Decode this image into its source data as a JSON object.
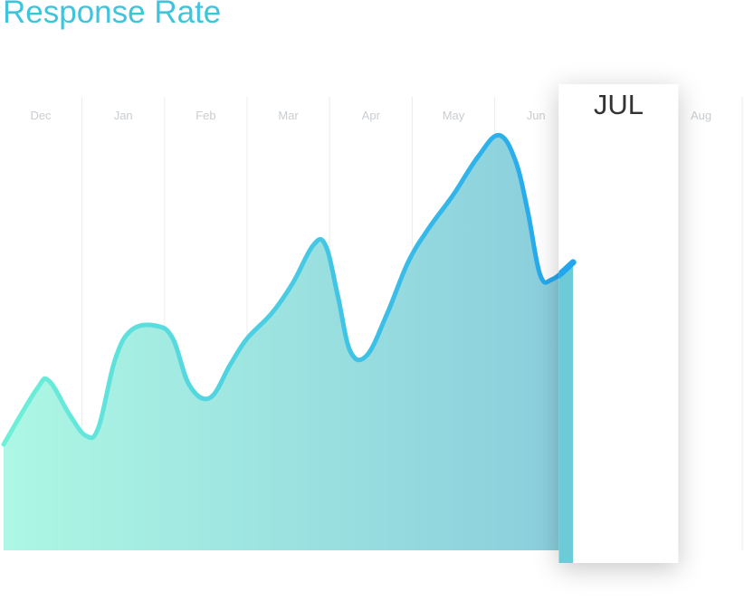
{
  "title": "Response Rate",
  "chart_data": {
    "type": "area",
    "title": "Response Rate",
    "categories": [
      "Dec",
      "Jan",
      "Feb",
      "Mar",
      "Apr",
      "May",
      "Jun",
      "Jul",
      "Aug"
    ],
    "highlight": {
      "index": 7,
      "label": "JUL"
    },
    "series": [
      {
        "values": [
          [
            -0.45,
            0.25
          ],
          [
            -0.05,
            0.38
          ],
          [
            0.1,
            0.4
          ],
          [
            0.35,
            0.32
          ],
          [
            0.55,
            0.27
          ],
          [
            0.7,
            0.29
          ],
          [
            0.9,
            0.45
          ],
          [
            1.1,
            0.52
          ],
          [
            1.4,
            0.53
          ],
          [
            1.6,
            0.5
          ],
          [
            1.8,
            0.39
          ],
          [
            2.05,
            0.36
          ],
          [
            2.3,
            0.44
          ],
          [
            2.5,
            0.5
          ],
          [
            2.8,
            0.56
          ],
          [
            3.05,
            0.63
          ],
          [
            3.3,
            0.72
          ],
          [
            3.45,
            0.72
          ],
          [
            3.6,
            0.6
          ],
          [
            3.75,
            0.47
          ],
          [
            3.95,
            0.46
          ],
          [
            4.2,
            0.56
          ],
          [
            4.45,
            0.68
          ],
          [
            4.7,
            0.76
          ],
          [
            5.0,
            0.84
          ],
          [
            5.3,
            0.93
          ],
          [
            5.55,
            0.98
          ],
          [
            5.75,
            0.92
          ],
          [
            5.9,
            0.8
          ],
          [
            6.05,
            0.65
          ],
          [
            6.2,
            0.64
          ],
          [
            6.45,
            0.68
          ]
        ]
      }
    ],
    "grid": true,
    "colors": {
      "area_left": "#adf7e4",
      "area_right": "#8acddc",
      "line_left": "#6ef0d8",
      "line_right": "#22a6ee",
      "highlight_fill": "#6ccbd7",
      "title": "#3fc4dc",
      "month_label": "#c9cdd1",
      "grid": "#ececec"
    }
  }
}
